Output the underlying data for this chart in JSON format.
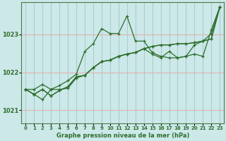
{
  "title": "Graphe pression niveau de la mer (hPa)",
  "background_color": "#cce8e8",
  "grid_color_h": "#e8b0b0",
  "grid_color_v": "#a8cece",
  "line_color": "#2d6e2d",
  "spine_color": "#4a7a4a",
  "xlim": [
    -0.5,
    23.5
  ],
  "ylim": [
    1020.65,
    1023.85
  ],
  "yticks": [
    1021,
    1022,
    1023
  ],
  "xticks": [
    0,
    1,
    2,
    3,
    4,
    5,
    6,
    7,
    8,
    9,
    10,
    11,
    12,
    13,
    14,
    15,
    16,
    17,
    18,
    19,
    20,
    21,
    22,
    23
  ],
  "series": [
    [
      1021.55,
      1021.55,
      1021.68,
      1021.55,
      1021.65,
      1021.78,
      1021.95,
      1022.55,
      1022.75,
      1023.15,
      1023.02,
      1023.02,
      1023.48,
      1022.82,
      1022.82,
      1022.52,
      1022.42,
      1022.38,
      1022.38,
      1022.42,
      1022.72,
      1022.82,
      1023.02,
      1023.72
    ],
    [
      1021.55,
      1021.42,
      1021.55,
      1021.38,
      1021.52,
      1021.62,
      1021.88,
      1021.92,
      1022.12,
      1022.28,
      1022.32,
      1022.42,
      1022.48,
      1022.52,
      1022.62,
      1022.68,
      1022.72,
      1022.72,
      1022.75,
      1022.75,
      1022.78,
      1022.82,
      1022.88,
      1023.72
    ],
    [
      1021.55,
      1021.42,
      1021.55,
      1021.38,
      1021.52,
      1021.62,
      1021.88,
      1021.92,
      1022.12,
      1022.28,
      1022.32,
      1022.42,
      1022.48,
      1022.52,
      1022.62,
      1022.68,
      1022.72,
      1022.72,
      1022.75,
      1022.75,
      1022.78,
      1022.82,
      1022.88,
      1023.72
    ],
    [
      1021.55,
      1021.42,
      1021.28,
      1021.55,
      1021.55,
      1021.58,
      1021.85,
      1021.92,
      1022.12,
      1022.28,
      1022.32,
      1022.42,
      1022.48,
      1022.52,
      1022.62,
      1022.48,
      1022.38,
      1022.55,
      1022.38,
      1022.42,
      1022.48,
      1022.42,
      1023.12,
      1023.72
    ]
  ]
}
